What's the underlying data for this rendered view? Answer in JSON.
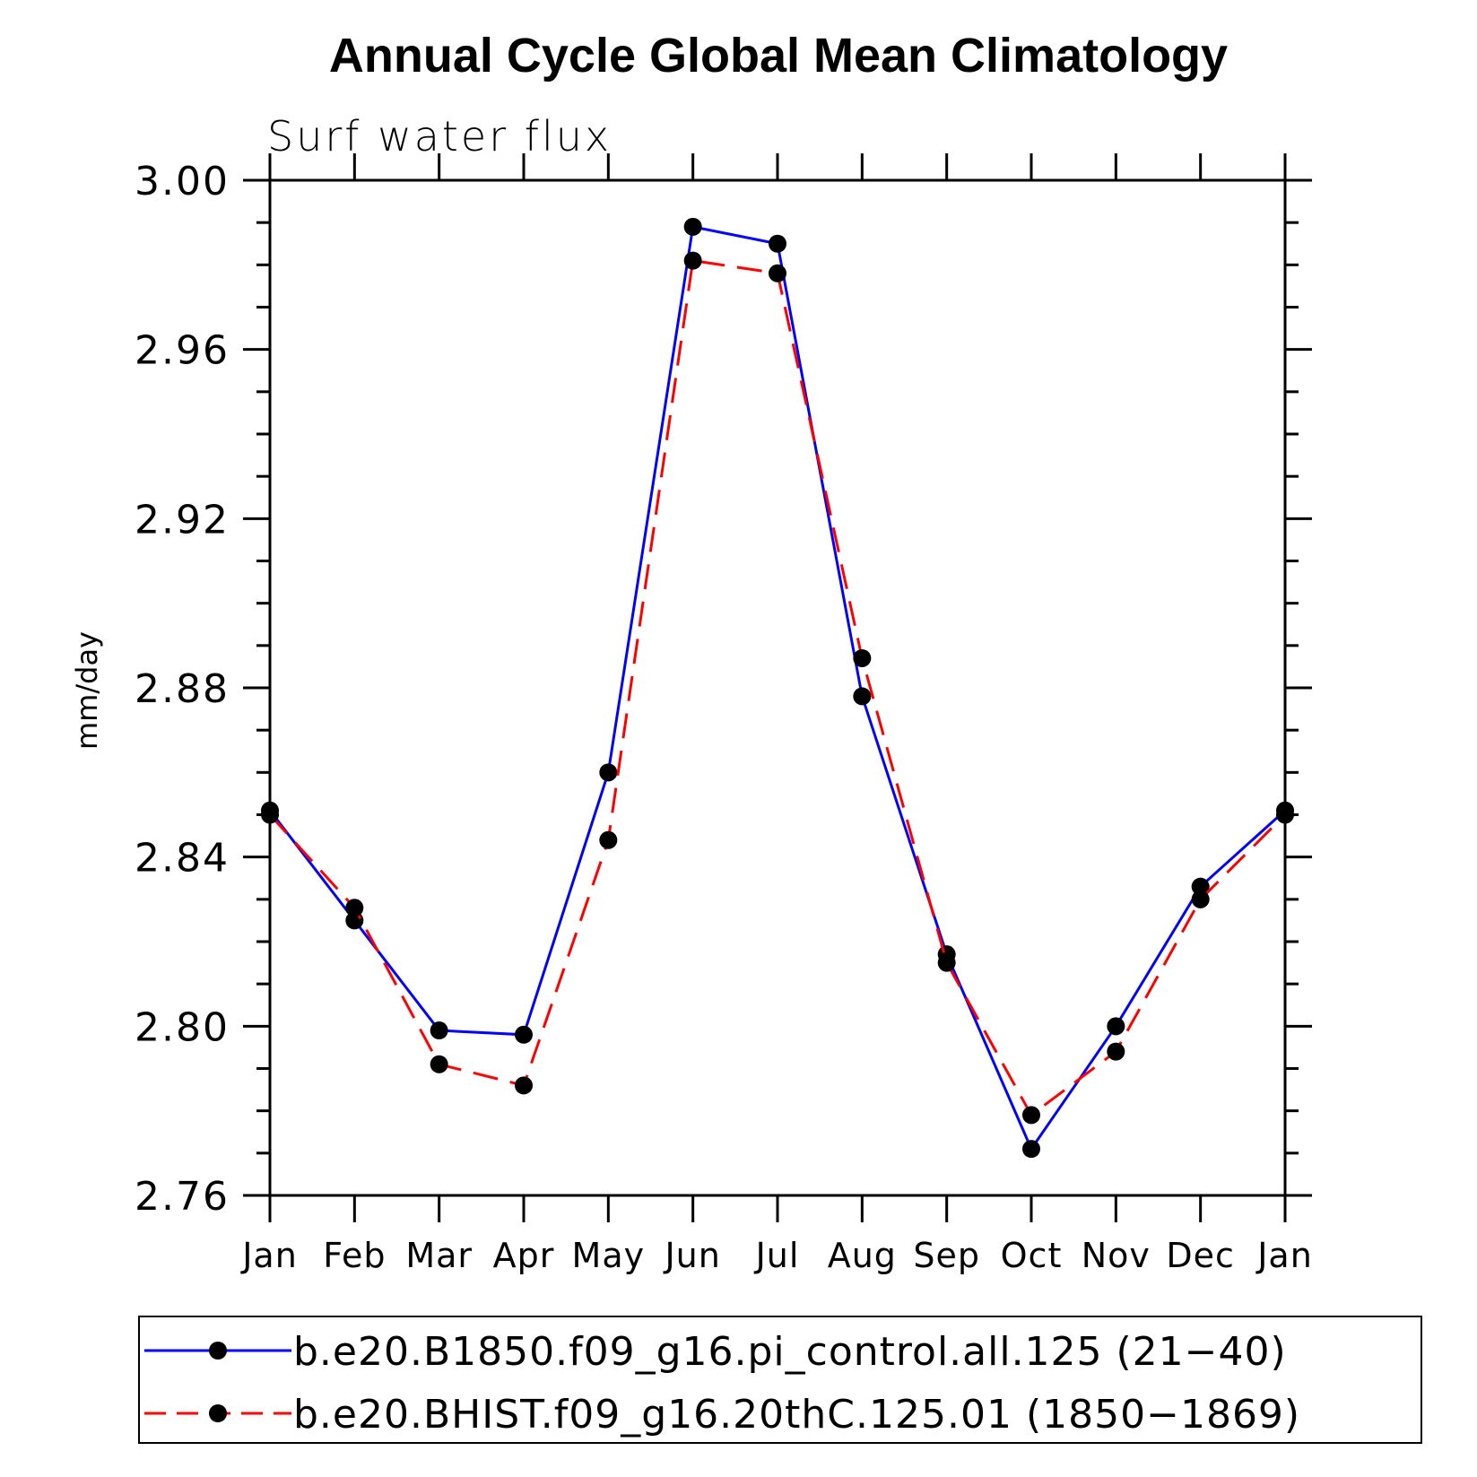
{
  "chart_data": {
    "type": "line",
    "title": "Annual Cycle Global Mean Climatology",
    "subtitle": "Surf water flux",
    "xlabel": "",
    "ylabel": "mm/day",
    "categories": [
      "Jan",
      "Feb",
      "Mar",
      "Apr",
      "May",
      "Jun",
      "Jul",
      "Aug",
      "Sep",
      "Oct",
      "Nov",
      "Dec",
      "Jan"
    ],
    "ylim": [
      2.76,
      3.0
    ],
    "yticks": [
      "2.76",
      "2.80",
      "2.84",
      "2.88",
      "2.92",
      "2.96",
      "3.00"
    ],
    "grid": false,
    "legend_position": "bottom",
    "series": [
      {
        "name": "b.e20.B1850.f09_g16.pi_control.all.125 (21−40)",
        "color": "#0000ff",
        "style": "solid",
        "marker": "dot",
        "values": [
          2.851,
          2.825,
          2.799,
          2.798,
          2.86,
          2.989,
          2.985,
          2.878,
          2.817,
          2.771,
          2.8,
          2.833,
          2.851
        ]
      },
      {
        "name": "b.e20.BHIST.f09_g16.20thC.125.01 (1850−1869)",
        "color": "#ff0000",
        "style": "dashed",
        "marker": "dot",
        "values": [
          2.85,
          2.828,
          2.791,
          2.786,
          2.844,
          2.981,
          2.978,
          2.887,
          2.815,
          2.779,
          2.794,
          2.83,
          2.85
        ]
      }
    ]
  }
}
